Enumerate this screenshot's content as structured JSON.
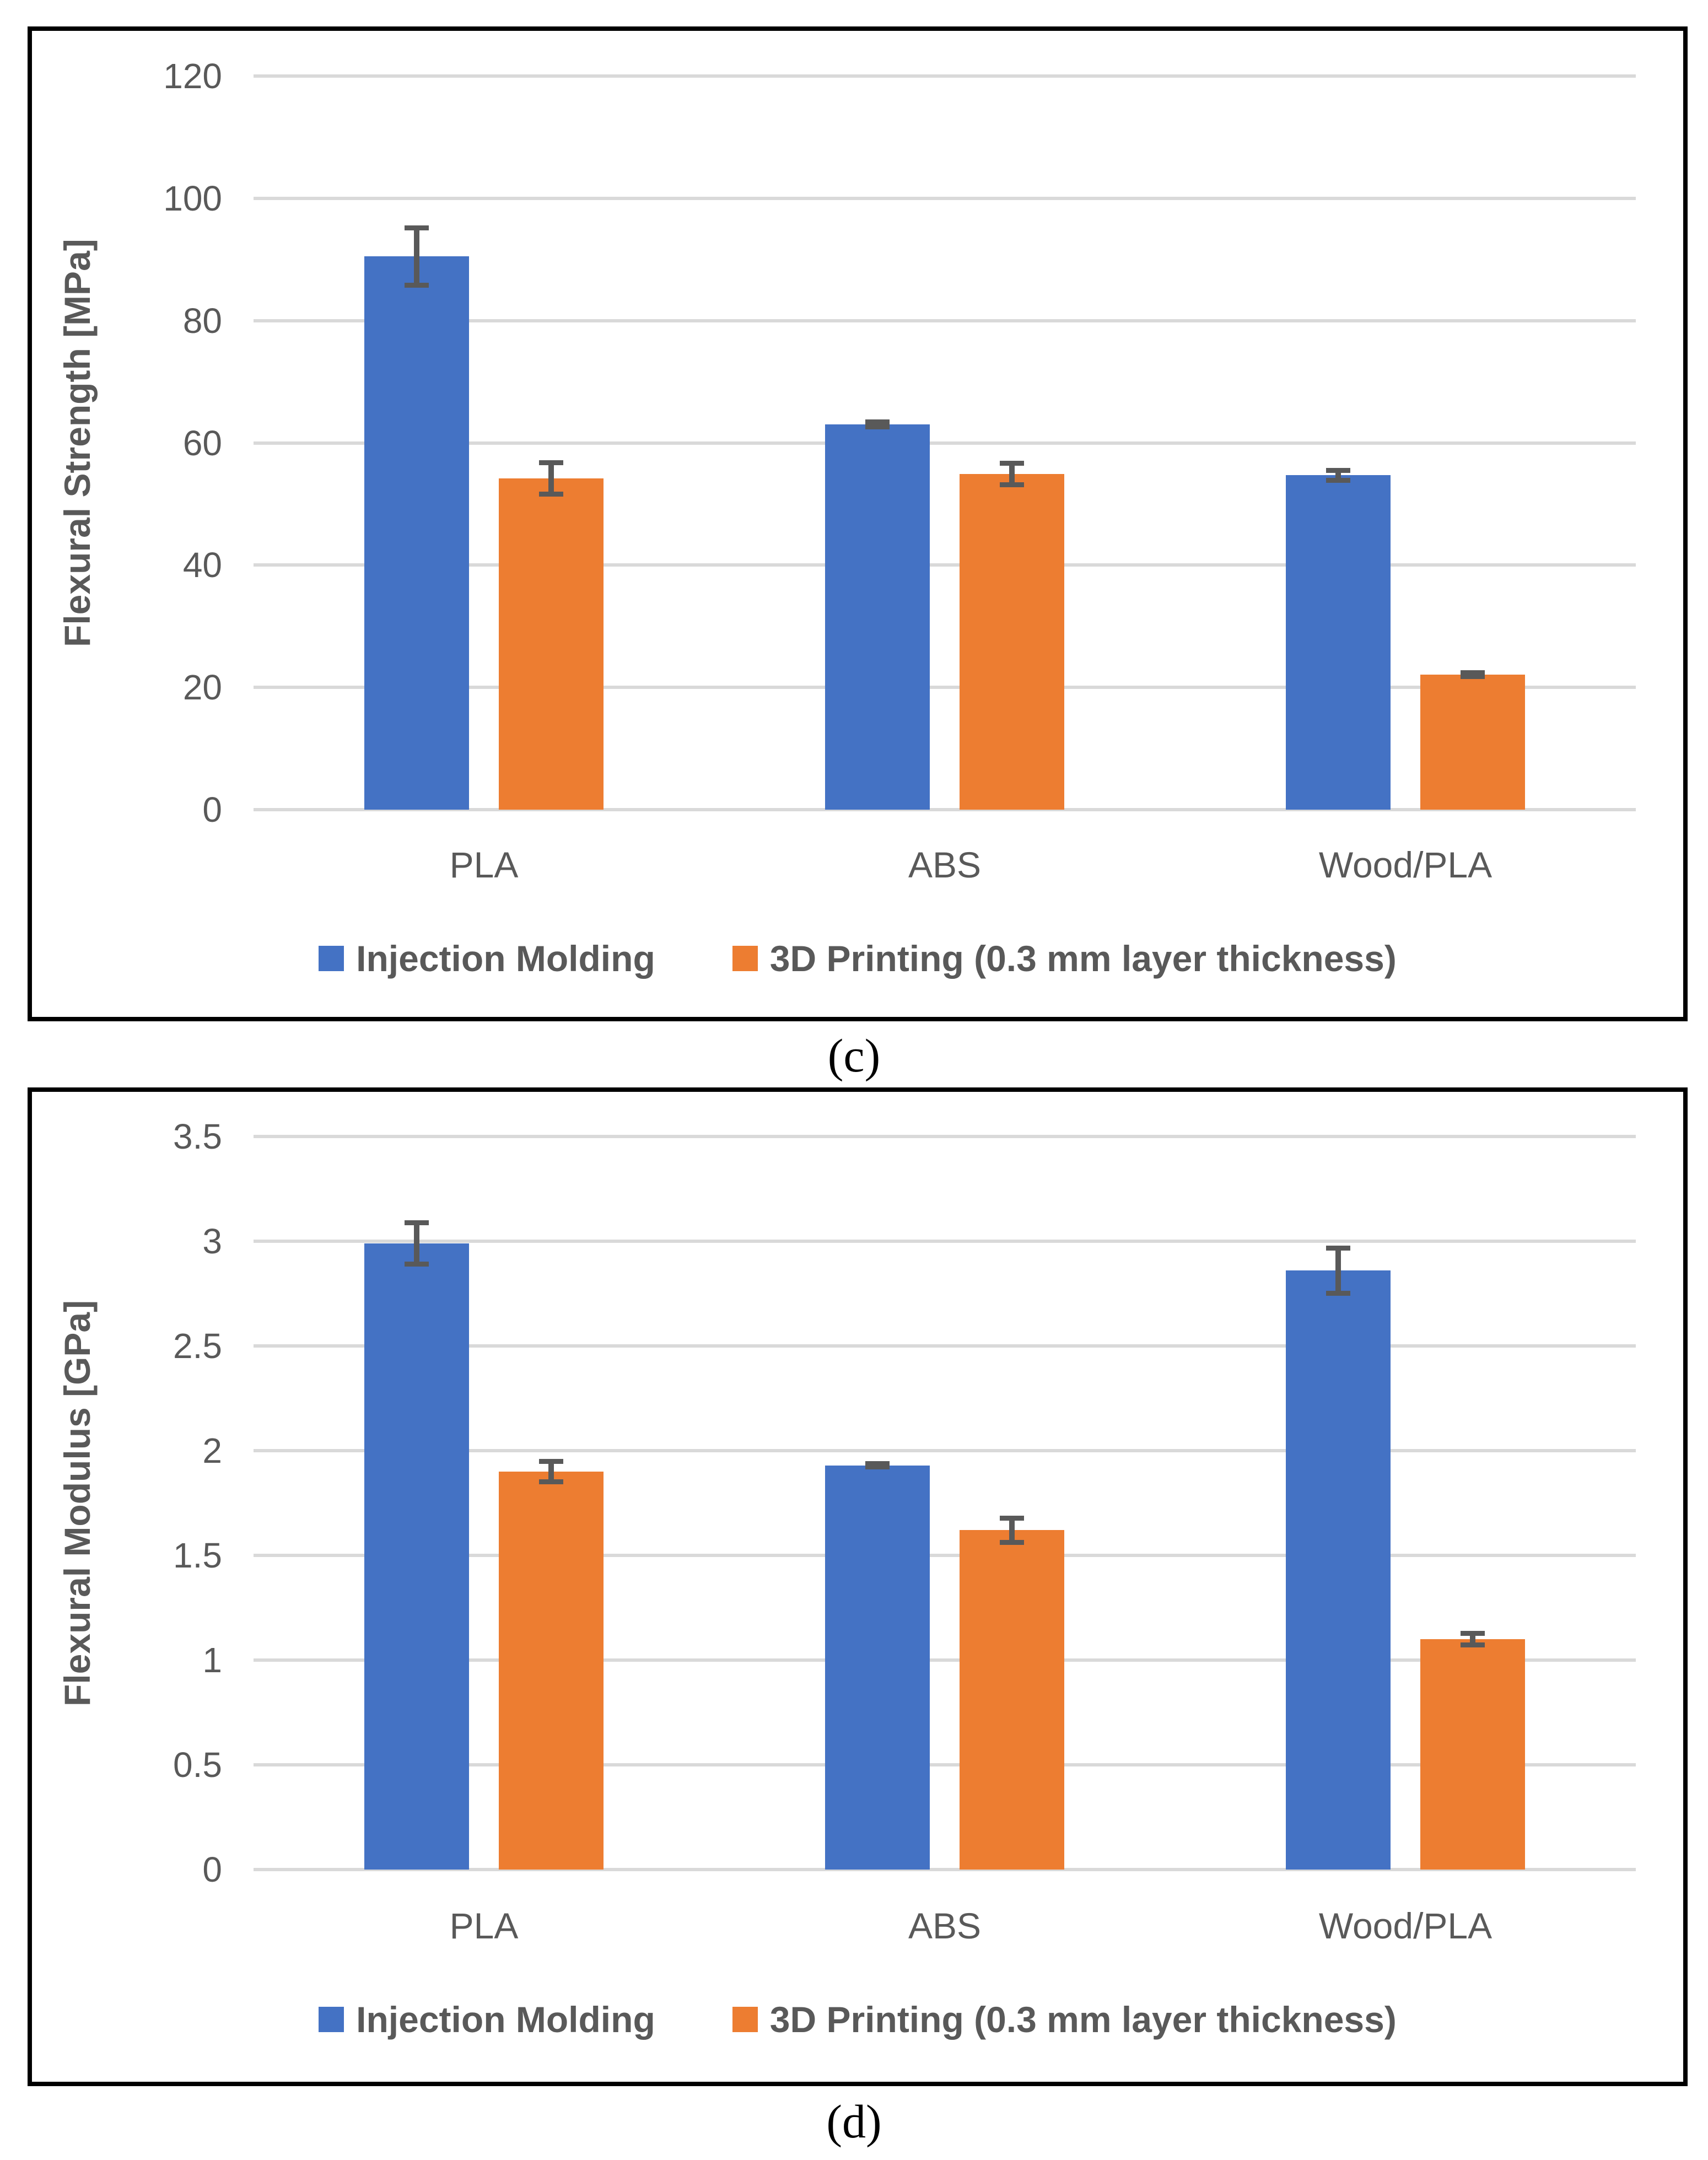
{
  "colors": {
    "series_injection_molding": "#4472C4",
    "series_3d_printing": "#ED7D31",
    "gridline": "#D9D9D9",
    "axis_text": "#595959",
    "error_bar": "#595959",
    "panel_border": "#000000",
    "background": "#FFFFFF"
  },
  "chart_data": [
    {
      "type": "bar",
      "caption": "(c)",
      "title": "",
      "xlabel": "",
      "ylabel": "Flexural Strength [MPa]",
      "ylim": [
        0,
        120
      ],
      "ytick_labels": [
        "120",
        "100",
        "80",
        "60",
        "40",
        "20",
        "0"
      ],
      "ytick_values": [
        120,
        100,
        80,
        60,
        40,
        20,
        0
      ],
      "grid": "horizontal",
      "legend_position": "bottom",
      "categories": [
        "PLA",
        "ABS",
        "Wood/PLA"
      ],
      "series": [
        {
          "name": "Injection Molding",
          "color_key": "series_injection_molding",
          "values": [
            90.5,
            63.0,
            54.7
          ],
          "errors": [
            5.1,
            0.8,
            1.2
          ]
        },
        {
          "name": "3D Printing (0.3 mm layer thickness)",
          "color_key": "series_3d_printing",
          "values": [
            54.2,
            54.9,
            22.1
          ],
          "errors": [
            3.0,
            2.2,
            0.7
          ]
        }
      ]
    },
    {
      "type": "bar",
      "caption": "(d)",
      "title": "",
      "xlabel": "",
      "ylabel": "Flexural Modulus [GPa]",
      "ylim": [
        0,
        3.5
      ],
      "ytick_labels": [
        "3.5",
        "3",
        "2.5",
        "2",
        "1.5",
        "1",
        "0.5",
        "0"
      ],
      "ytick_values": [
        3.5,
        3.0,
        2.5,
        2.0,
        1.5,
        1.0,
        0.5,
        0
      ],
      "grid": "horizontal",
      "legend_position": "bottom",
      "categories": [
        "PLA",
        "ABS",
        "Wood/PLA"
      ],
      "series": [
        {
          "name": "Injection Molding",
          "color_key": "series_injection_molding",
          "values": [
            2.99,
            1.93,
            2.86
          ],
          "errors": [
            0.11,
            0.02,
            0.12
          ]
        },
        {
          "name": "3D Printing (0.3 mm layer thickness)",
          "color_key": "series_3d_printing",
          "values": [
            1.9,
            1.62,
            1.1
          ],
          "errors": [
            0.06,
            0.07,
            0.04
          ]
        }
      ]
    }
  ]
}
